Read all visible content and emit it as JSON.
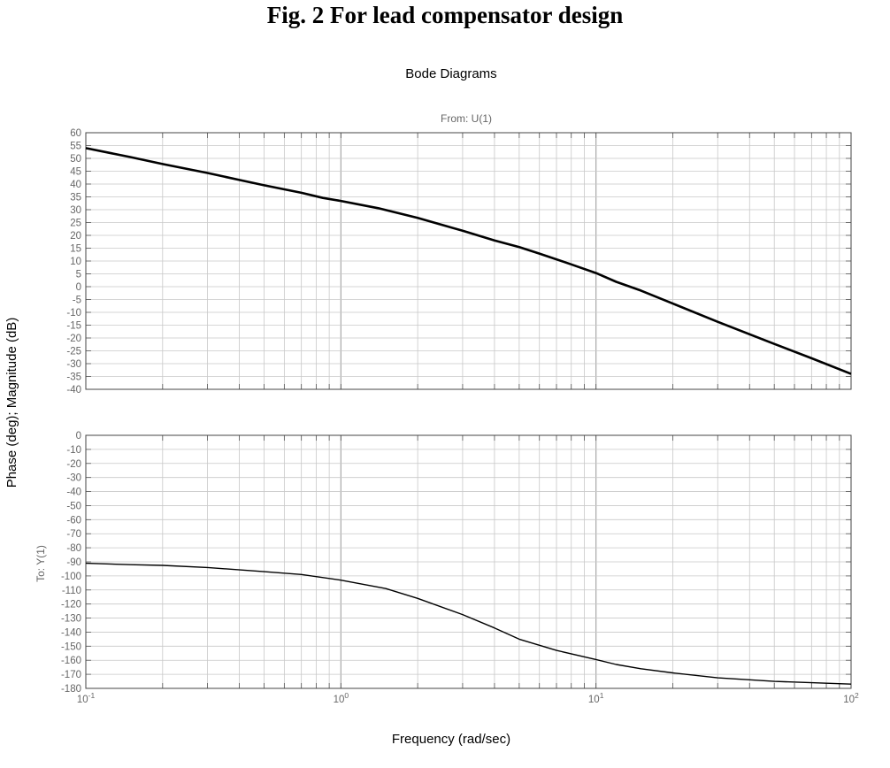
{
  "figure": {
    "caption": "Fig. 2  For lead compensator design"
  },
  "chart_data": {
    "type": "line",
    "title": "Bode Diagrams",
    "subtitle": "From: U(1)",
    "xlabel": "Frequency (rad/sec)",
    "ylabel": "Phase (deg); Magnitude (dB)",
    "row_label": "To: Y(1)",
    "x_scale": "log",
    "xlim": [
      0.1,
      100
    ],
    "x_tick_labels": [
      {
        "base": "10",
        "exp": "-1",
        "value": 0.1
      },
      {
        "base": "10",
        "exp": "0",
        "value": 1
      },
      {
        "base": "10",
        "exp": "1",
        "value": 10
      },
      {
        "base": "10",
        "exp": "2",
        "value": 100
      }
    ],
    "grid": true,
    "line_color": "#000000",
    "grid_color": "#c8c8c8",
    "axis_text_color": "#666666",
    "panels": [
      {
        "name": "magnitude",
        "unit": "dB",
        "ylim": [
          -40,
          60
        ],
        "y_ticks": [
          60,
          55,
          50,
          45,
          40,
          35,
          30,
          25,
          20,
          15,
          10,
          5,
          0,
          -5,
          -10,
          -15,
          -20,
          -25,
          -30,
          -35,
          -40
        ],
        "x": [
          0.1,
          0.15,
          0.2,
          0.3,
          0.4,
          0.5,
          0.7,
          0.85,
          1,
          1.4,
          2,
          3,
          4,
          5,
          6,
          8,
          10,
          12,
          15,
          20,
          30,
          50,
          70,
          100
        ],
        "y": [
          54,
          50.5,
          47.8,
          44.3,
          41.6,
          39.5,
          36.6,
          34.6,
          33.4,
          30.6,
          26.8,
          21.8,
          18,
          15.4,
          12.9,
          8.7,
          5.3,
          1.9,
          -1.5,
          -6.6,
          -13.7,
          -22.3,
          -27.9,
          -34
        ]
      },
      {
        "name": "phase",
        "unit": "deg",
        "ylim": [
          -180,
          0
        ],
        "y_ticks": [
          0,
          -10,
          -20,
          -30,
          -40,
          -50,
          -60,
          -70,
          -80,
          -90,
          -100,
          -110,
          -120,
          -130,
          -140,
          -150,
          -160,
          -170,
          -180
        ],
        "x": [
          0.1,
          0.15,
          0.2,
          0.3,
          0.5,
          0.7,
          1,
          1.5,
          2,
          3,
          4,
          5,
          7,
          10,
          12,
          15,
          20,
          30,
          50,
          70,
          100
        ],
        "y": [
          -91,
          -92,
          -92.5,
          -94,
          -97,
          -99,
          -103,
          -109,
          -116,
          -127.5,
          -137,
          -145,
          -153,
          -159.5,
          -163,
          -166,
          -169,
          -172.5,
          -175,
          -176,
          -177
        ]
      }
    ]
  }
}
